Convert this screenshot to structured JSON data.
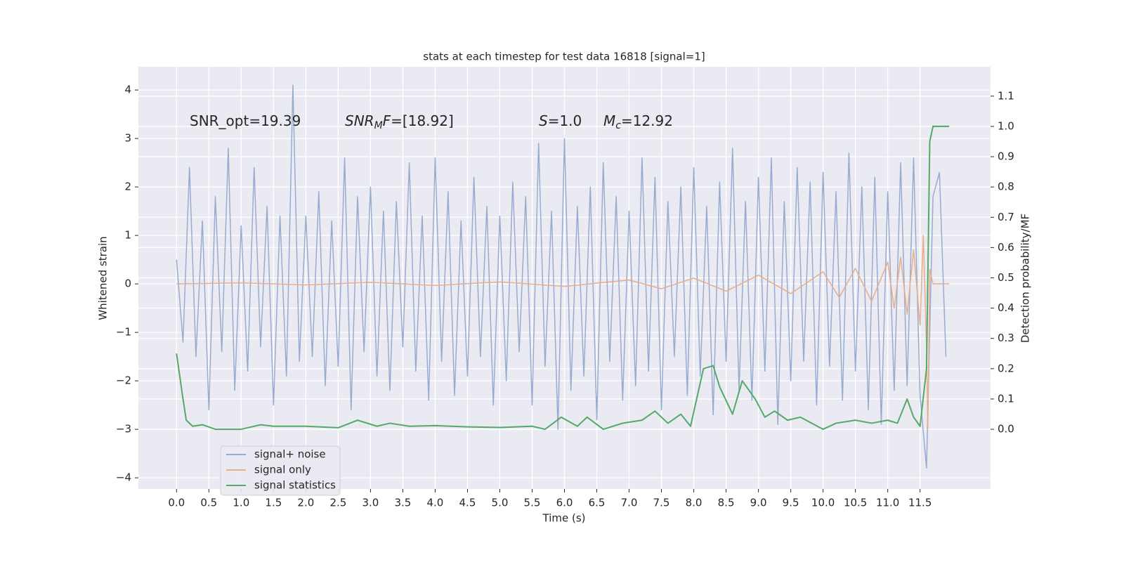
{
  "chart_data": {
    "type": "line",
    "title": "stats at each timestep for test data 16818 [signal=1]",
    "xlabel": "Time (s)",
    "ylabel": "Whitened strain",
    "y2label": "Detection probability/MF",
    "xlim": [
      -0.59,
      12.59
    ],
    "ylim": [
      -4.23,
      4.48
    ],
    "y2lim": [
      -0.197,
      1.197
    ],
    "xticks": [
      {
        "value": 0,
        "label": "0.0"
      },
      0.5,
      {
        "value": 1,
        "label": "1.0"
      },
      1.5,
      {
        "value": 2,
        "label": "2.0"
      },
      2.5,
      {
        "value": 3,
        "label": "3.0"
      },
      3.5,
      {
        "value": 4,
        "label": "4.0"
      },
      4.5,
      {
        "value": 5,
        "label": "5.0"
      },
      5.5,
      {
        "value": 6,
        "label": "6.0"
      },
      6.5,
      {
        "value": 7,
        "label": "7.0"
      },
      7.5,
      {
        "value": 8,
        "label": "8.0"
      },
      8.5,
      {
        "value": 9,
        "label": "9.0"
      },
      9.5,
      {
        "value": 10,
        "label": "10.0"
      },
      10.5,
      {
        "value": 11,
        "label": "11.0"
      },
      11.5
    ],
    "yticks": [
      {
        "value": -4,
        "label": "−4"
      },
      {
        "value": -3,
        "label": "−3"
      },
      {
        "value": -2,
        "label": "−2"
      },
      {
        "value": -1,
        "label": "−1"
      },
      0,
      1,
      2,
      3,
      4
    ],
    "y2ticks": [
      {
        "value": 0,
        "label": "0.0"
      },
      0.1,
      0.2,
      0.3,
      0.4,
      0.5,
      0.6,
      0.7,
      0.8,
      0.9,
      {
        "value": 1,
        "label": "1.0"
      },
      1.1
    ],
    "grid": true,
    "legend": "lower left",
    "annotations": [
      [
        {
          "text": "SNR_opt=19.39"
        }
      ],
      [
        {
          "text": "SNR",
          "italic": true
        },
        {
          "text": "M",
          "italic": true,
          "sub": true
        },
        {
          "text": "F",
          "italic": true
        },
        {
          "text": "=[18.92]"
        }
      ],
      [
        {
          "text": "S",
          "italic": true
        },
        {
          "text": "=1.0"
        }
      ],
      [
        {
          "text": "M",
          "italic": true
        },
        {
          "text": "c",
          "italic": true,
          "sub": true
        },
        {
          "text": "=12.92"
        }
      ]
    ],
    "series": [
      {
        "name": "signal+ noise",
        "color": "#98acd0",
        "x": [
          0,
          0.1,
          0.2,
          0.3,
          0.4,
          0.5,
          0.6,
          0.7,
          0.8,
          0.9,
          1,
          1.1,
          1.2,
          1.3,
          1.4,
          1.5,
          1.6,
          1.7,
          1.8,
          1.9,
          2,
          2.1,
          2.2,
          2.3,
          2.4,
          2.5,
          2.6,
          2.7,
          2.8,
          2.9,
          3,
          3.1,
          3.2,
          3.3,
          3.4,
          3.5,
          3.6,
          3.7,
          3.8,
          3.9,
          4,
          4.1,
          4.2,
          4.3,
          4.4,
          4.5,
          4.6,
          4.7,
          4.8,
          4.9,
          5,
          5.1,
          5.2,
          5.3,
          5.4,
          5.5,
          5.6,
          5.7,
          5.8,
          5.9,
          6,
          6.1,
          6.2,
          6.3,
          6.4,
          6.5,
          6.6,
          6.7,
          6.8,
          6.9,
          7,
          7.1,
          7.2,
          7.3,
          7.4,
          7.5,
          7.6,
          7.7,
          7.8,
          7.9,
          8,
          8.1,
          8.2,
          8.3,
          8.4,
          8.5,
          8.6,
          8.7,
          8.8,
          8.9,
          9,
          9.1,
          9.2,
          9.3,
          9.4,
          9.5,
          9.6,
          9.7,
          9.8,
          9.9,
          10,
          10.1,
          10.2,
          10.3,
          10.4,
          10.5,
          10.6,
          10.7,
          10.8,
          10.9,
          11,
          11.1,
          11.2,
          11.3,
          11.4,
          11.5,
          11.6,
          11.7,
          11.8,
          11.9
        ],
        "values": [
          0.5,
          -1.2,
          2.4,
          -1.5,
          1.3,
          -2.6,
          1.8,
          -1.4,
          2.8,
          -2.2,
          1.2,
          -1.8,
          2.4,
          -1.3,
          1.6,
          -2.5,
          1.4,
          -1.9,
          4.1,
          -1.6,
          1.4,
          -1.5,
          1.9,
          -2.1,
          1.3,
          -1.7,
          2.6,
          -2.6,
          1.8,
          -1.4,
          2.0,
          -1.9,
          1.5,
          -2.2,
          1.7,
          -1.3,
          2.5,
          -1.8,
          1.4,
          -2.4,
          2.6,
          -1.6,
          1.9,
          -2.3,
          1.3,
          -1.9,
          2.2,
          -1.5,
          1.6,
          -2.5,
          1.4,
          -2.0,
          2.1,
          -1.4,
          1.8,
          -2.5,
          2.9,
          -1.7,
          1.5,
          -3.0,
          3.0,
          -2.2,
          1.6,
          -1.9,
          2.0,
          -2.8,
          2.5,
          -1.6,
          1.8,
          -2.4,
          1.5,
          -2.1,
          2.6,
          -1.8,
          2.2,
          -2.6,
          1.7,
          -1.5,
          2.0,
          -2.3,
          2.4,
          -1.9,
          1.6,
          -2.7,
          2.1,
          -1.6,
          2.8,
          -2.2,
          1.7,
          -2.4,
          2.2,
          -1.8,
          2.6,
          -2.9,
          1.7,
          -2.0,
          2.4,
          -1.6,
          2.1,
          -2.5,
          2.3,
          -1.7,
          1.9,
          -2.4,
          2.7,
          -1.8,
          2.0,
          -2.6,
          2.2,
          -2.9,
          1.9,
          -2.2,
          2.5,
          -2.1,
          2.6,
          -2.3,
          -3.8,
          1.8,
          2.3,
          -1.5
        ]
      },
      {
        "name": "signal only",
        "color": "#e8ad8b",
        "x": [
          0,
          1,
          2,
          3,
          4,
          5,
          6,
          7,
          7.5,
          8,
          8.5,
          9,
          9.5,
          10,
          10.25,
          10.5,
          10.75,
          11,
          11.1,
          11.2,
          11.3,
          11.4,
          11.5,
          11.55,
          11.6,
          11.62,
          11.65,
          11.7,
          11.95
        ],
        "values": [
          0,
          0.02,
          -0.02,
          0.03,
          -0.03,
          0.04,
          -0.05,
          0.08,
          -0.1,
          0.12,
          -0.15,
          0.18,
          -0.2,
          0.25,
          -0.28,
          0.32,
          -0.36,
          0.45,
          -0.5,
          0.55,
          -0.62,
          0.7,
          -0.85,
          1.0,
          -1.3,
          -3.0,
          0.3,
          0,
          0
        ]
      },
      {
        "name": "signal statistics",
        "color": "#55a868",
        "axis": "y2",
        "x": [
          0,
          0.1,
          0.15,
          0.25,
          0.4,
          0.6,
          1.0,
          1.3,
          1.5,
          2.0,
          2.5,
          2.8,
          3.1,
          3.3,
          3.6,
          4.0,
          4.5,
          5.0,
          5.5,
          5.7,
          5.95,
          6.2,
          6.35,
          6.6,
          6.9,
          7.2,
          7.4,
          7.6,
          7.8,
          7.95,
          8.15,
          8.3,
          8.4,
          8.6,
          8.75,
          8.95,
          9.1,
          9.25,
          9.45,
          9.65,
          10.0,
          10.2,
          10.5,
          10.75,
          11.0,
          11.15,
          11.3,
          11.4,
          11.5,
          11.6,
          11.65,
          11.7,
          11.8,
          11.95
        ],
        "values": [
          0.25,
          0.1,
          0.03,
          0.01,
          0.015,
          0.0,
          0.0,
          0.015,
          0.01,
          0.01,
          0.005,
          0.03,
          0.01,
          0.02,
          0.01,
          0.012,
          0.008,
          0.006,
          0.01,
          0.0,
          0.04,
          0.01,
          0.04,
          0.0,
          0.02,
          0.03,
          0.06,
          0.02,
          0.05,
          0.01,
          0.2,
          0.21,
          0.14,
          0.05,
          0.16,
          0.1,
          0.04,
          0.06,
          0.03,
          0.04,
          0.0,
          0.02,
          0.03,
          0.02,
          0.03,
          0.02,
          0.1,
          0.04,
          0.01,
          0.2,
          0.95,
          1.0,
          1.0,
          1.0
        ]
      }
    ]
  }
}
